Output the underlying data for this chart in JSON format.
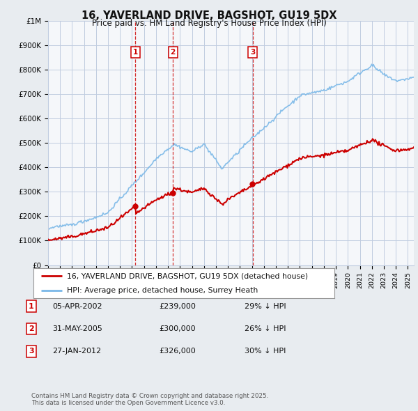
{
  "title": "16, YAVERLAND DRIVE, BAGSHOT, GU19 5DX",
  "subtitle": "Price paid vs. HM Land Registry's House Price Index (HPI)",
  "y_ticks": [
    0,
    100000,
    200000,
    300000,
    400000,
    500000,
    600000,
    700000,
    800000,
    900000,
    1000000
  ],
  "y_tick_labels": [
    "£0",
    "£100K",
    "£200K",
    "£300K",
    "£400K",
    "£500K",
    "£600K",
    "£700K",
    "£800K",
    "£900K",
    "£1M"
  ],
  "x_start_year": 1995,
  "x_end_year": 2025,
  "hpi_color": "#7ab8e8",
  "price_color": "#cc0000",
  "vline_color": "#cc0000",
  "sale_dates": [
    2002.27,
    2005.41,
    2012.07
  ],
  "sale_prices": [
    239000,
    300000,
    326000
  ],
  "sale_labels": [
    "1",
    "2",
    "3"
  ],
  "legend_label_price": "16, YAVERLAND DRIVE, BAGSHOT, GU19 5DX (detached house)",
  "legend_label_hpi": "HPI: Average price, detached house, Surrey Heath",
  "table_rows": [
    [
      "1",
      "05-APR-2002",
      "£239,000",
      "29% ↓ HPI"
    ],
    [
      "2",
      "31-MAY-2005",
      "£300,000",
      "26% ↓ HPI"
    ],
    [
      "3",
      "27-JAN-2012",
      "£326,000",
      "30% ↓ HPI"
    ]
  ],
  "footer": "Contains HM Land Registry data © Crown copyright and database right 2025.\nThis data is licensed under the Open Government Licence v3.0.",
  "bg_color": "#e8ecf0",
  "plot_bg_color": "#f5f7fa",
  "grid_color": "#c0cce0"
}
